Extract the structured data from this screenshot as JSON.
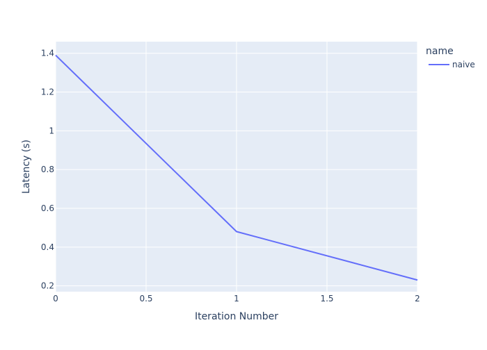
{
  "chart_data": {
    "type": "line",
    "title": "",
    "xlabel": "Iteration Number",
    "ylabel": "Latency (s)",
    "xlim": [
      0,
      2
    ],
    "ylim": [
      0.17,
      1.46
    ],
    "x_ticks": [
      0,
      0.5,
      1,
      1.5,
      2
    ],
    "x_tick_labels": [
      "0",
      "0.5",
      "1",
      "1.5",
      "2"
    ],
    "y_ticks": [
      0.2,
      0.4,
      0.6,
      0.8,
      1.0,
      1.2,
      1.4
    ],
    "y_tick_labels": [
      "0.2",
      "0.4",
      "0.6",
      "0.8",
      "1",
      "1.2",
      "1.4"
    ],
    "grid": true,
    "legend": {
      "title": "name",
      "placement": "top-right outside"
    },
    "series": [
      {
        "name": "naive",
        "color": "#636efa",
        "x": [
          0,
          1,
          2
        ],
        "y": [
          1.39,
          0.48,
          0.23
        ]
      }
    ]
  },
  "colors": {
    "plot_background": "#e5ecf6",
    "grid": "#ffffff",
    "text": "#2a3f5f"
  }
}
